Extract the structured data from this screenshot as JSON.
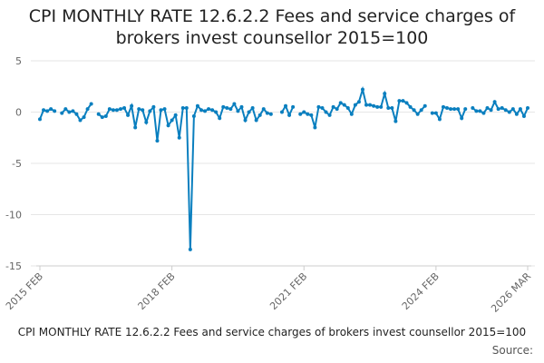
{
  "chart_data": {
    "type": "line",
    "title": "CPI MONTHLY RATE 12.6.2.2 Fees and service charges of brokers invest counsellor 2015=100",
    "footer_title": "CPI MONTHLY RATE 12.6.2.2 Fees and service charges of brokers invest counsellor 2015=100",
    "source": "Source:",
    "categories": [
      "2015 FEB",
      null,
      null,
      null,
      null,
      null,
      null,
      null,
      null,
      null,
      null,
      null,
      null,
      null,
      null,
      null,
      null,
      null,
      null,
      null,
      null,
      null,
      null,
      null,
      null,
      null,
      null,
      null,
      null,
      null,
      null,
      null,
      null,
      null,
      null,
      null,
      "2018 FEB",
      null,
      null,
      null,
      null,
      null,
      null,
      null,
      null,
      null,
      null,
      null,
      null,
      null,
      null,
      null,
      null,
      null,
      null,
      null,
      null,
      null,
      null,
      null,
      null,
      null,
      null,
      null,
      null,
      null,
      null,
      null,
      null,
      null,
      null,
      null,
      "2021 FEB",
      null,
      null,
      null,
      null,
      null,
      null,
      null,
      null,
      null,
      null,
      null,
      null,
      null,
      null,
      null,
      null,
      null,
      null,
      null,
      null,
      null,
      null,
      null,
      null,
      null,
      null,
      null,
      null,
      null,
      null,
      null,
      null,
      null,
      null,
      null,
      "2024 FEB",
      null,
      null,
      null,
      null,
      null,
      null,
      null,
      null,
      null,
      null,
      null,
      null,
      null,
      null,
      null,
      null,
      null,
      null,
      null,
      null,
      null,
      null,
      null,
      null,
      "2026 MAR"
    ],
    "series": [
      {
        "name": "CPI MONTHLY RATE",
        "color": "#0a7fbf",
        "values": [
          -0.7,
          0.2,
          0.1,
          0.3,
          0.1,
          null,
          -0.1,
          0.3,
          0.0,
          0.1,
          -0.2,
          -0.8,
          -0.5,
          0.3,
          0.8,
          null,
          -0.2,
          -0.5,
          -0.4,
          0.3,
          0.2,
          0.2,
          0.3,
          0.4,
          -0.3,
          0.6,
          -1.5,
          0.3,
          0.2,
          -1.0,
          0.1,
          0.5,
          -2.8,
          0.2,
          0.3,
          -1.3,
          -0.8,
          -0.3,
          -2.5,
          0.4,
          0.4,
          -13.4,
          -0.4,
          0.6,
          0.2,
          0.1,
          0.3,
          0.2,
          0.0,
          -0.6,
          0.5,
          0.4,
          0.3,
          0.8,
          0.1,
          0.5,
          -0.8,
          0.0,
          0.4,
          -0.8,
          -0.3,
          0.3,
          -0.1,
          -0.2,
          null,
          null,
          0.0,
          0.6,
          -0.3,
          0.5,
          null,
          -0.2,
          0.0,
          -0.2,
          -0.3,
          -1.5,
          0.5,
          0.4,
          0.0,
          -0.3,
          0.5,
          0.3,
          0.9,
          0.7,
          0.4,
          -0.2,
          0.7,
          1.0,
          2.2,
          0.7,
          0.7,
          0.6,
          0.5,
          0.5,
          1.8,
          0.4,
          0.4,
          -0.9,
          1.1,
          1.1,
          0.9,
          0.5,
          0.2,
          -0.2,
          0.2,
          0.6,
          null,
          -0.1,
          -0.1,
          -0.7,
          0.5,
          0.4,
          0.3,
          0.3,
          0.3,
          -0.6,
          0.3,
          null,
          0.4,
          0.1,
          0.1,
          -0.1,
          0.4,
          0.2,
          1.0,
          0.3,
          0.4,
          0.2,
          0.0,
          0.3,
          -0.2,
          0.3,
          -0.4,
          0.4
        ]
      }
    ],
    "ylim": [
      -15,
      5
    ],
    "yticks": [
      5,
      0,
      -5,
      -10,
      -15
    ],
    "grid": true
  }
}
